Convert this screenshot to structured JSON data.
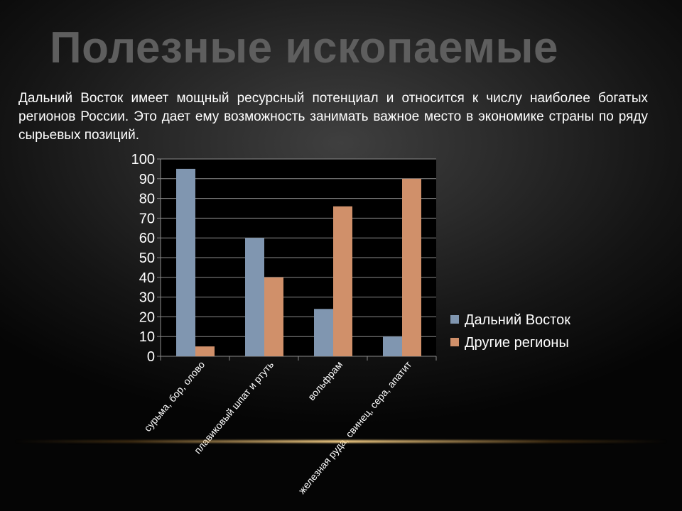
{
  "slide": {
    "title": "Полезные ископаемые",
    "paragraph": "Дальний Восток имеет мощный ресурсный потенциал  и относится к числу наиболее богатых регионов России. Это дает ему возможность занимать важное место в экономике страны по ряду сырьевых позиций."
  },
  "chart_data": {
    "type": "bar",
    "title": "",
    "xlabel": "",
    "ylabel": "",
    "categories": [
      "сурьма, бор, олово",
      "плавиковый шпат и ртуть",
      "вольфрам",
      "железная руда, свинец, сера, апатит"
    ],
    "series": [
      {
        "name": "Дальний Восток",
        "values": [
          95,
          60,
          24,
          10
        ],
        "color": "#8096b0"
      },
      {
        "name": "Другие регионы",
        "values": [
          5,
          40,
          76,
          90
        ],
        "color": "#d0906a"
      }
    ],
    "ylim": [
      0,
      100
    ],
    "yticks": [
      0,
      10,
      20,
      30,
      40,
      50,
      60,
      70,
      80,
      90,
      100
    ],
    "grid": true,
    "legend_position": "right"
  }
}
